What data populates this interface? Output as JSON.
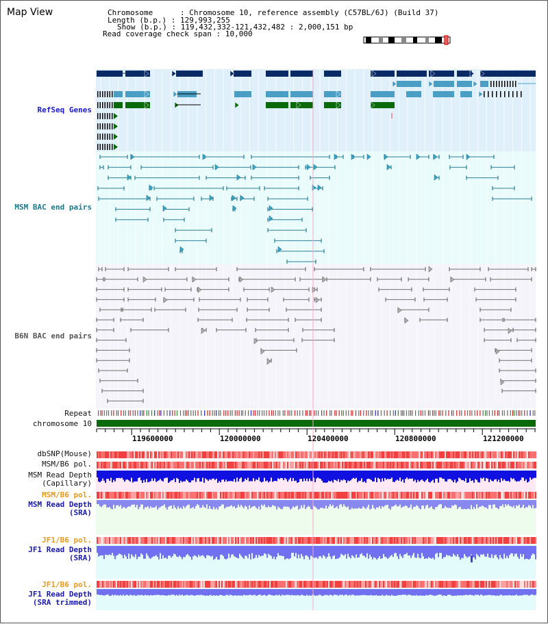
{
  "title": "Map View",
  "info": {
    "chromosome_label": "Chromosome",
    "chromosome_value": "Chromosome 10, reference assembly (C57BL/6J) (Build 37)",
    "length_label": "Length (b.p.)",
    "length_value": "129,993,255",
    "show_label": "Show (b.p.)",
    "show_value": "119,432,332-121,432,482 : 2,000,151 bp",
    "coverage_label": "Read coverage check span",
    "coverage_value": "10,000"
  },
  "tracks": {
    "refseq": "RefSeq Genes",
    "msm_bac": "MSM BAC end pairs",
    "b6n_bac": "B6N BAC end pairs",
    "repeat": "Repeat",
    "chromosome": "chromosome 10",
    "dbsnp": "dbSNP(Mouse)",
    "msm_b6_pol": "MSM/B6 pol.",
    "msm_depth_cap_1": "MSM Read Depth",
    "msm_depth_cap_2": "(Capillary)",
    "msm_b6_pol2": "MSM/B6 pol.",
    "msm_depth_sra_1": "MSM Read Depth",
    "msm_depth_sra_2": "(SRA)",
    "jf1_b6_pol": "JF1/B6 pol.",
    "jf1_depth_sra_1": "JF1 Read Depth",
    "jf1_depth_sra_2": "(SRA)",
    "jf1_b6_pol2": "JF1/B6 pol.",
    "jf1_depth_trim_1": "JF1 Read Depth",
    "jf1_depth_trim_2": "(SRA trimmed)"
  },
  "axis": {
    "ticks": [
      "119600000",
      "120000000",
      "120400000",
      "120800000",
      "121200000"
    ]
  },
  "colors": {
    "refseq_bg": "#dff0fb",
    "msm_bg": "#e9fbfb",
    "b6n_bg": "#f4f4fa",
    "gene_dark": "#0a2a66",
    "gene_mid": "#4a9ec4",
    "gene_green": "#0a6a0a",
    "msm_pair": "#2a7f95",
    "b6n_pair": "#707070",
    "chrom_green": "#0a6a0a"
  }
}
